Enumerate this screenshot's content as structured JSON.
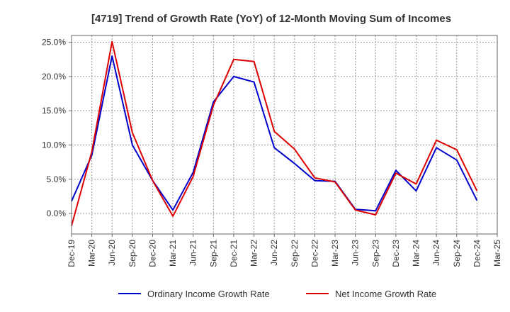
{
  "chart_data": {
    "type": "line",
    "title": "[4719]  Trend of Growth Rate (YoY) of 12-Month Moving Sum of Incomes",
    "xlabel": "",
    "ylabel": "",
    "x_ticks": [
      "Dec-19",
      "Mar-20",
      "Jun-20",
      "Sep-20",
      "Dec-20",
      "Mar-21",
      "Jun-21",
      "Sep-21",
      "Dec-21",
      "Mar-22",
      "Jun-22",
      "Sep-22",
      "Dec-22",
      "Mar-23",
      "Jun-23",
      "Sep-23",
      "Dec-23",
      "Mar-24",
      "Jun-24",
      "Sep-24",
      "Dec-24",
      "Mar-25"
    ],
    "y_ticks": [
      "25.0%",
      "20.0%",
      "15.0%",
      "10.0%",
      "5.0%",
      "0.0%"
    ],
    "y_tick_values": [
      25,
      20,
      15,
      10,
      5,
      0
    ],
    "ylim": [
      -3,
      26
    ],
    "grid": true,
    "legend_position": "bottom",
    "categories": [
      "Dec-19",
      "Mar-20",
      "Jun-20",
      "Sep-20",
      "Dec-20",
      "Mar-21",
      "Jun-21",
      "Sep-21",
      "Dec-21",
      "Mar-22",
      "Jun-22",
      "Sep-22",
      "Dec-22",
      "Mar-23",
      "Jun-23",
      "Sep-23",
      "Dec-23",
      "Mar-24",
      "Jun-24",
      "Sep-24",
      "Dec-24"
    ],
    "series": [
      {
        "name": "Ordinary Income Growth Rate",
        "color": "#0000cc",
        "values": [
          1.8,
          8.5,
          23.0,
          10.0,
          4.8,
          0.5,
          6.0,
          16.3,
          20.0,
          19.2,
          9.6,
          7.3,
          4.8,
          4.7,
          0.6,
          0.4,
          6.3,
          3.3,
          9.6,
          7.8,
          1.9
        ]
      },
      {
        "name": "Net Income Growth Rate",
        "color": "#dd0000",
        "values": [
          -1.8,
          9.0,
          25.1,
          11.8,
          4.8,
          -0.4,
          5.4,
          15.8,
          22.5,
          22.2,
          12.0,
          9.4,
          5.2,
          4.6,
          0.5,
          -0.2,
          5.9,
          4.3,
          10.7,
          9.3,
          3.3
        ]
      }
    ]
  }
}
